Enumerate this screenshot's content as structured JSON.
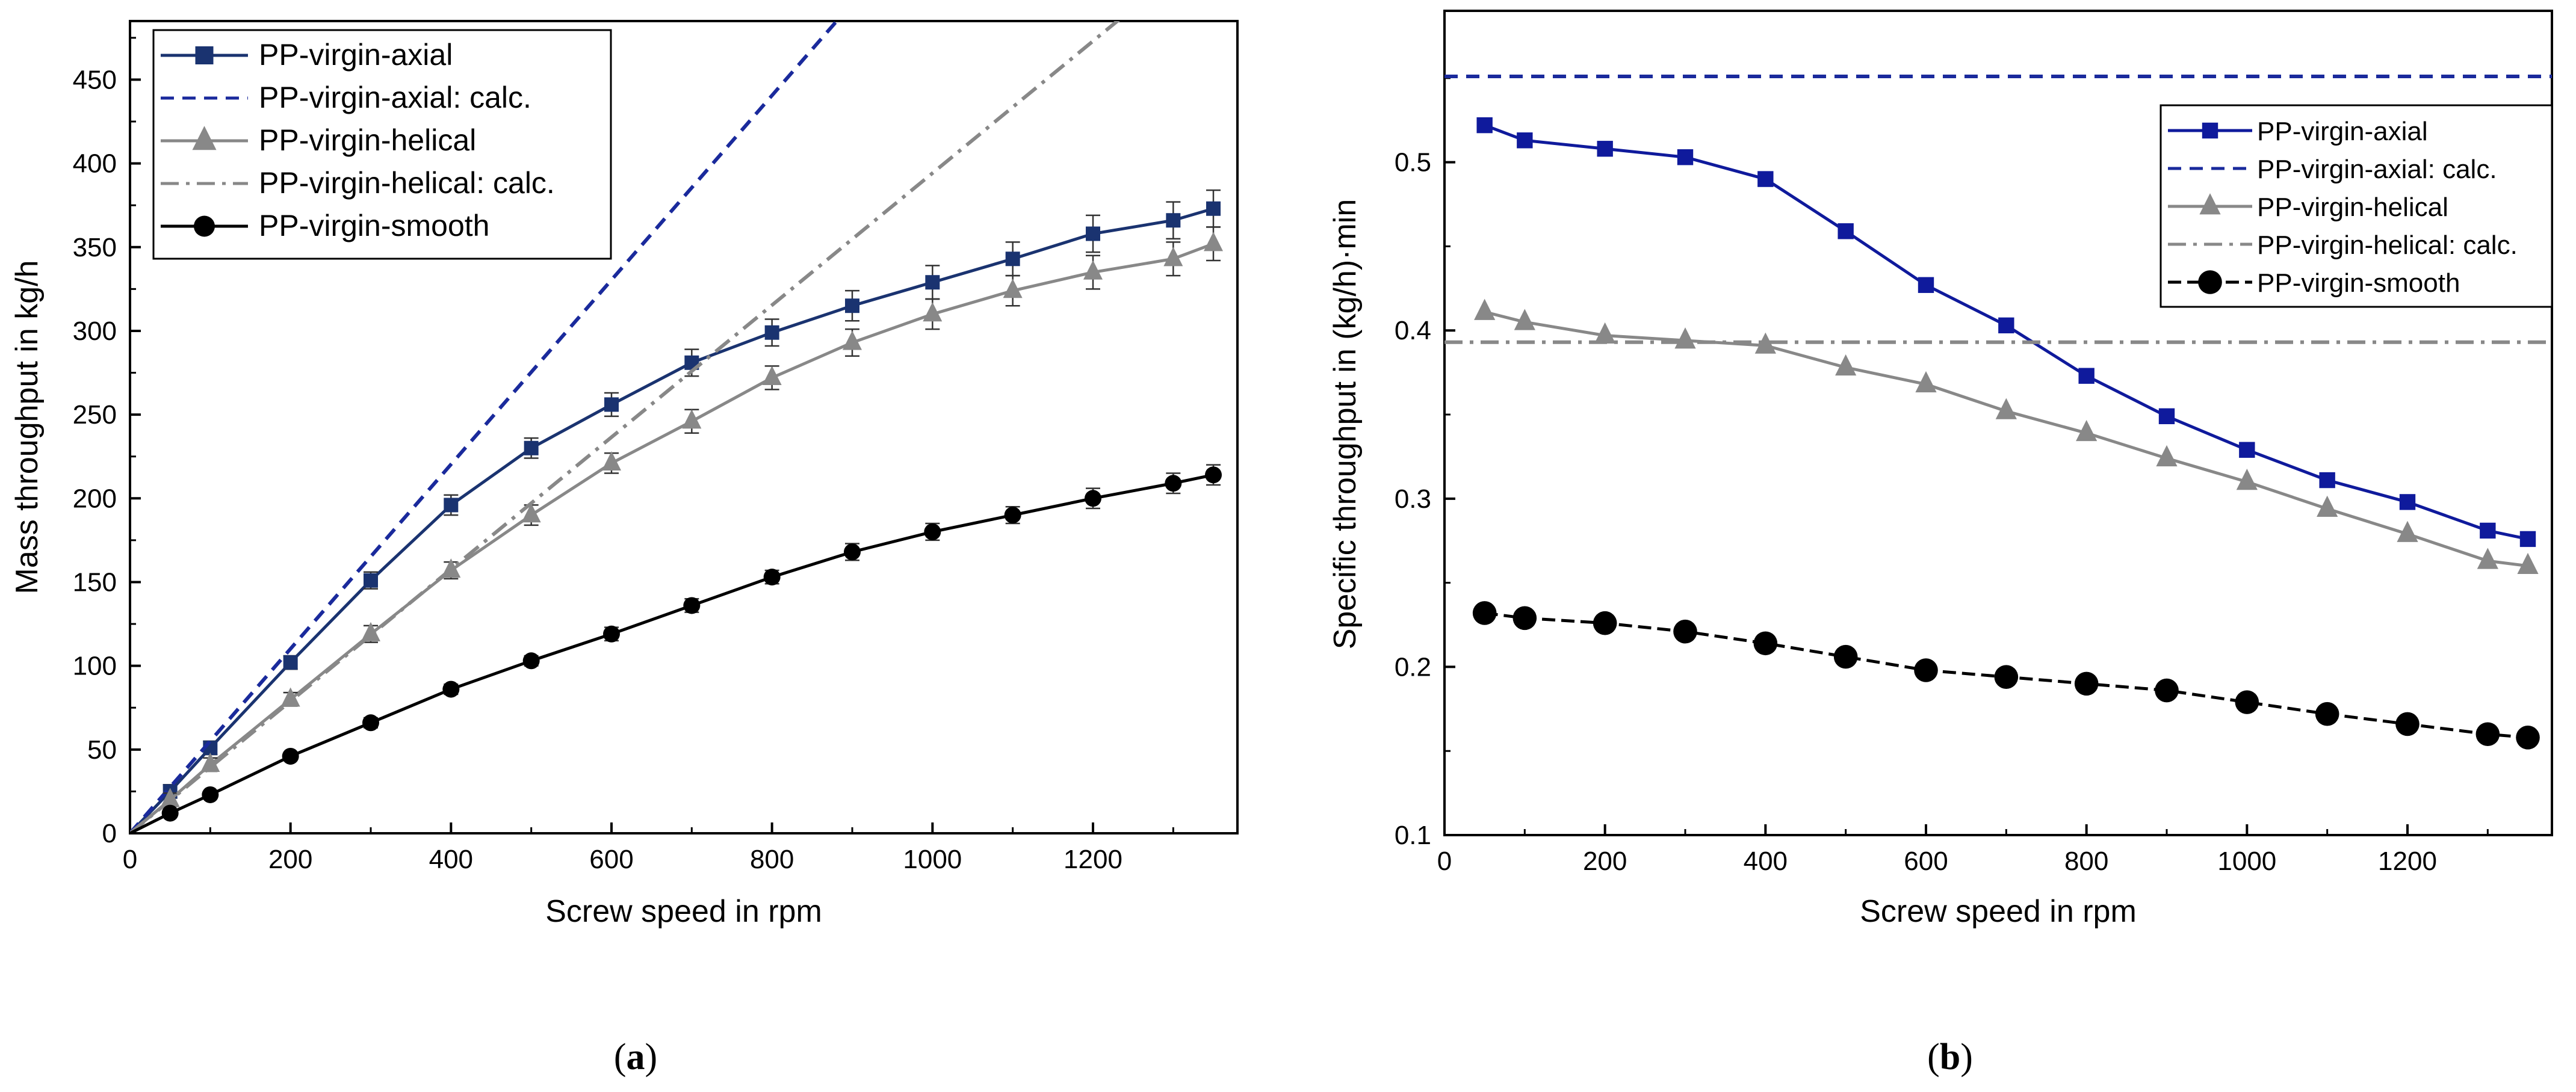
{
  "colors": {
    "axial": "#1a3370",
    "axial_calc": "#1a2a9c",
    "helical": "#888888",
    "helical_calc": "#888888",
    "smooth": "#000000",
    "axial_b": "#0f1a9c"
  },
  "panels": {
    "a": {
      "label_prefix": "(",
      "label_letter": "a",
      "label_suffix": ")"
    },
    "b": {
      "label_prefix": "(",
      "label_letter": "b",
      "label_suffix": ")"
    }
  },
  "chart_data": [
    {
      "type": "line",
      "id": "a",
      "xlabel": "Screw speed in rpm",
      "ylabel": "Mass throughput in kg/h",
      "xlim": [
        0,
        1380
      ],
      "ylim": [
        0,
        485
      ],
      "xticks": [
        0,
        200,
        400,
        600,
        800,
        1000,
        1200
      ],
      "yticks": [
        0,
        50,
        100,
        150,
        200,
        250,
        300,
        350,
        400,
        450
      ],
      "legend_position": "top-left",
      "series": [
        {
          "name": "PP-virgin-axial",
          "style": "solid-square",
          "x": [
            0,
            50,
            100,
            200,
            300,
            400,
            500,
            600,
            700,
            800,
            900,
            1000,
            1100,
            1200,
            1300,
            1350
          ],
          "y": [
            0,
            25,
            51,
            102,
            151,
            196,
            230,
            256,
            281,
            299,
            315,
            329,
            343,
            358,
            366,
            373
          ],
          "err": [
            0,
            4,
            4,
            4,
            5,
            6,
            6,
            7,
            8,
            8,
            9,
            10,
            10,
            11,
            11,
            11
          ]
        },
        {
          "name": "PP-virgin-axial: calc.",
          "style": "dashed",
          "x": [
            0,
            1380
          ],
          "y": [
            0,
            760
          ]
        },
        {
          "name": "PP-virgin-helical",
          "style": "solid-triangle",
          "x": [
            0,
            50,
            100,
            200,
            300,
            400,
            500,
            600,
            700,
            800,
            900,
            1000,
            1100,
            1200,
            1300,
            1350
          ],
          "y": [
            0,
            20,
            41,
            80,
            119,
            157,
            190,
            221,
            246,
            272,
            293,
            310,
            324,
            335,
            343,
            352
          ],
          "err": [
            0,
            4,
            4,
            4,
            5,
            5,
            6,
            6,
            7,
            7,
            8,
            9,
            9,
            10,
            10,
            10
          ]
        },
        {
          "name": "PP-virgin-helical: calc.",
          "style": "dashdot",
          "x": [
            0,
            1380
          ],
          "y": [
            0,
            544
          ]
        },
        {
          "name": "PP-virgin-smooth",
          "style": "solid-circle",
          "x": [
            0,
            50,
            100,
            200,
            300,
            400,
            500,
            600,
            700,
            800,
            900,
            1000,
            1100,
            1200,
            1300,
            1350
          ],
          "y": [
            0,
            12,
            23,
            46,
            66,
            86,
            103,
            119,
            136,
            153,
            168,
            180,
            190,
            200,
            209,
            214
          ],
          "err": [
            0,
            2,
            2,
            2,
            3,
            3,
            3,
            4,
            4,
            4,
            5,
            5,
            5,
            6,
            6,
            6
          ]
        }
      ]
    },
    {
      "type": "line",
      "id": "b",
      "xlabel": "Screw speed in rpm",
      "ylabel": "Specific throughput in (kg/h)·min",
      "xlim": [
        0,
        1380
      ],
      "ylim": [
        0.1,
        0.59
      ],
      "xticks": [
        0,
        200,
        400,
        600,
        800,
        1000,
        1200
      ],
      "yticks": [
        0.1,
        0.2,
        0.3,
        0.4,
        0.5
      ],
      "legend_position": "top-right",
      "series": [
        {
          "name": "PP-virgin-axial",
          "style": "solid-square",
          "x": [
            50,
            100,
            200,
            300,
            400,
            500,
            600,
            700,
            800,
            900,
            1000,
            1100,
            1200,
            1300,
            1350
          ],
          "y": [
            0.522,
            0.513,
            0.508,
            0.503,
            0.49,
            0.459,
            0.427,
            0.403,
            0.373,
            0.349,
            0.329,
            0.311,
            0.298,
            0.281,
            0.276
          ]
        },
        {
          "name": "PP-virgin-axial: calc.",
          "style": "dashed",
          "x": [
            0,
            1380
          ],
          "y": [
            0.551,
            0.551
          ]
        },
        {
          "name": "PP-virgin-helical",
          "style": "solid-triangle",
          "x": [
            50,
            100,
            200,
            300,
            400,
            500,
            600,
            700,
            800,
            900,
            1000,
            1100,
            1200,
            1300,
            1350
          ],
          "y": [
            0.411,
            0.405,
            0.397,
            0.394,
            0.391,
            0.378,
            0.368,
            0.352,
            0.339,
            0.324,
            0.31,
            0.294,
            0.279,
            0.263,
            0.26
          ]
        },
        {
          "name": "PP-virgin-helical: calc.",
          "style": "dashdot",
          "x": [
            0,
            1380
          ],
          "y": [
            0.393,
            0.393
          ]
        },
        {
          "name": "PP-virgin-smooth",
          "style": "solid-circle",
          "x": [
            50,
            100,
            200,
            300,
            400,
            500,
            600,
            700,
            800,
            900,
            1000,
            1100,
            1200,
            1300,
            1350
          ],
          "y": [
            0.232,
            0.229,
            0.226,
            0.221,
            0.214,
            0.206,
            0.198,
            0.194,
            0.19,
            0.186,
            0.179,
            0.172,
            0.166,
            0.16,
            0.158
          ]
        }
      ]
    }
  ]
}
